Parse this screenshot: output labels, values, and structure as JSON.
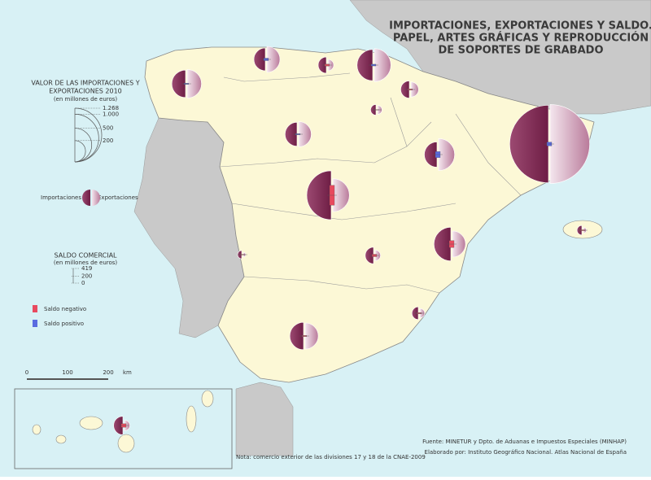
{
  "title": [
    "IMPORTACIONES, EXPORTACIONES Y SALDO.",
    "PAPEL, ARTES GRÁFICAS Y REPRODUCCIÓN",
    "DE SOPORTES DE GRABADO"
  ],
  "legend": {
    "title": [
      "VALOR DE LAS IMPORTACIONES Y",
      "EXPORTACIONES 2010",
      "(en millones de euros)"
    ],
    "circles": [
      {
        "value": 1268,
        "label": "1.268"
      },
      {
        "value": 1000,
        "label": "1.000"
      },
      500,
      200
    ],
    "imports_label": "Importaciones",
    "exports_label": "Exportaciones",
    "saldo_title": [
      "SALDO COMERCIAL",
      "(en millones de euros)"
    ],
    "saldo_ticks": [
      419,
      200,
      0
    ],
    "negative_label": "Saldo negativo",
    "positive_label": "Saldo positivo"
  },
  "scale_bar": {
    "ticks": [
      0,
      100,
      200
    ],
    "unit": "km"
  },
  "symbols": [
    {
      "imports": 330,
      "exports": 360,
      "saldo": 30
    },
    {
      "imports": 228,
      "exports": 298,
      "saldo": 70
    },
    {
      "imports": 116,
      "exports": 57,
      "saldo": -59
    },
    {
      "imports": 430,
      "exports": 480,
      "saldo": 50
    },
    {
      "imports": 130,
      "exports": 100,
      "saldo": -30
    },
    {
      "imports": 50,
      "exports": 35,
      "saldo": -15
    },
    {
      "imports": 250,
      "exports": 280,
      "saldo": 30
    },
    {
      "imports": 280,
      "exports": 450,
      "saldo": 170
    },
    {
      "imports": 2640,
      "exports": 2750,
      "saldo": 110
    },
    {
      "imports": 1050,
      "exports": 480,
      "saldo": -570
    },
    {
      "imports": 30,
      "exports": 10,
      "saldo": -20
    },
    {
      "imports": 120,
      "exports": 50,
      "saldo": -70
    },
    {
      "imports": 500,
      "exports": 300,
      "saldo": -200
    },
    {
      "imports": 40,
      "exports": 15,
      "saldo": -25
    },
    {
      "imports": 70,
      "exports": 40,
      "saldo": -30
    },
    {
      "imports": 330,
      "exports": 300,
      "saldo": -30
    },
    {
      "imports": 150,
      "exports": 50,
      "saldo": -100
    }
  ],
  "sources": [
    "Fuente: MINETUR y Dpto. de Aduanas e Impuestos Especiales (MINHAP)",
    "Elaborado por: Instituto Geográfico Nacional. Atlas Nacional de España"
  ],
  "note": "Nota: comercio exterior de las divisiones 17 y 18 de la CNAE-2009"
}
